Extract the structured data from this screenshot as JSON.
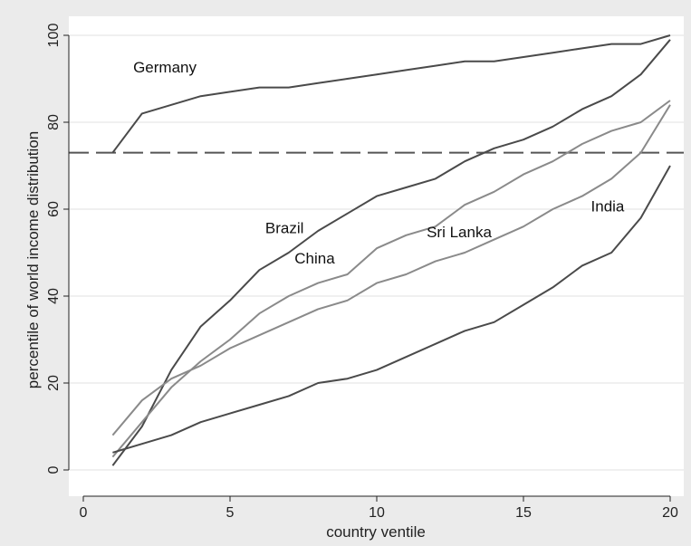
{
  "chart_data": {
    "type": "line",
    "title": "",
    "xlabel": "country ventile",
    "ylabel": "percentile of world income distribution",
    "xlim": [
      0,
      20
    ],
    "ylim": [
      0,
      100
    ],
    "xticks": [
      0,
      5,
      10,
      15,
      20
    ],
    "yticks": [
      0,
      20,
      40,
      60,
      80,
      100
    ],
    "x": [
      1,
      2,
      3,
      4,
      5,
      6,
      7,
      8,
      9,
      10,
      11,
      12,
      13,
      14,
      15,
      16,
      17,
      18,
      19,
      20
    ],
    "reference_line": {
      "y": 73,
      "style": "dashed"
    },
    "series": [
      {
        "name": "Germany",
        "color": "#4a4a4a",
        "values": [
          73,
          82,
          84,
          86,
          87,
          88,
          88,
          89,
          90,
          91,
          92,
          93,
          94,
          94,
          95,
          96,
          97,
          98,
          98,
          100
        ]
      },
      {
        "name": "Brazil",
        "color": "#4a4a4a",
        "values": [
          1,
          10,
          23,
          33,
          39,
          46,
          50,
          55,
          59,
          63,
          65,
          67,
          71,
          74,
          76,
          79,
          83,
          86,
          91,
          99
        ]
      },
      {
        "name": "China",
        "color": "#8a8a8a",
        "values": [
          3,
          11,
          19,
          25,
          30,
          36,
          40,
          43,
          45,
          51,
          54,
          56,
          61,
          64,
          68,
          71,
          75,
          78,
          80,
          85
        ]
      },
      {
        "name": "Sri Lanka",
        "color": "#8a8a8a",
        "values": [
          8,
          16,
          21,
          24,
          28,
          31,
          34,
          37,
          39,
          43,
          45,
          48,
          50,
          53,
          56,
          60,
          63,
          67,
          73,
          84
        ]
      },
      {
        "name": "India",
        "color": "#4a4a4a",
        "values": [
          4,
          6,
          8,
          11,
          13,
          15,
          17,
          20,
          21,
          23,
          26,
          29,
          32,
          34,
          38,
          42,
          47,
          50,
          58,
          70
        ]
      }
    ]
  },
  "colors": {
    "outer_background": "#ebebeb",
    "plot_background": "#ffffff",
    "reference_line": "#555555",
    "grid": "#e0e0e0"
  }
}
